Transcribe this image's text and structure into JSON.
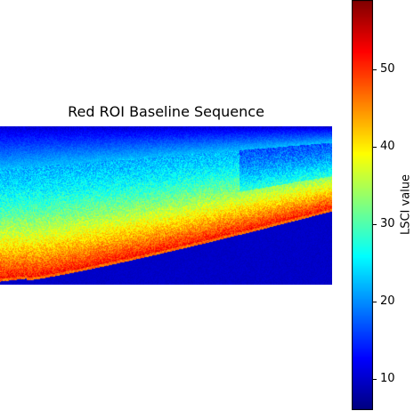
{
  "chart_data": {
    "type": "heatmap",
    "title": "Red ROI Baseline Sequence",
    "colormap": "jet",
    "colorbar": {
      "label": "LSCI value",
      "range": [
        6,
        59
      ],
      "ticks": [
        10,
        20,
        30,
        40,
        50
      ]
    },
    "regions": [
      {
        "name": "top band",
        "approx_value": 11
      },
      {
        "name": "upper tissue",
        "approx_value": 24
      },
      {
        "name": "mid tissue",
        "approx_value": 34
      },
      {
        "name": "lower tissue (brightest)",
        "approx_value": 50
      },
      {
        "name": "bottom background",
        "approx_value": 9
      }
    ],
    "axes_visible": false
  }
}
